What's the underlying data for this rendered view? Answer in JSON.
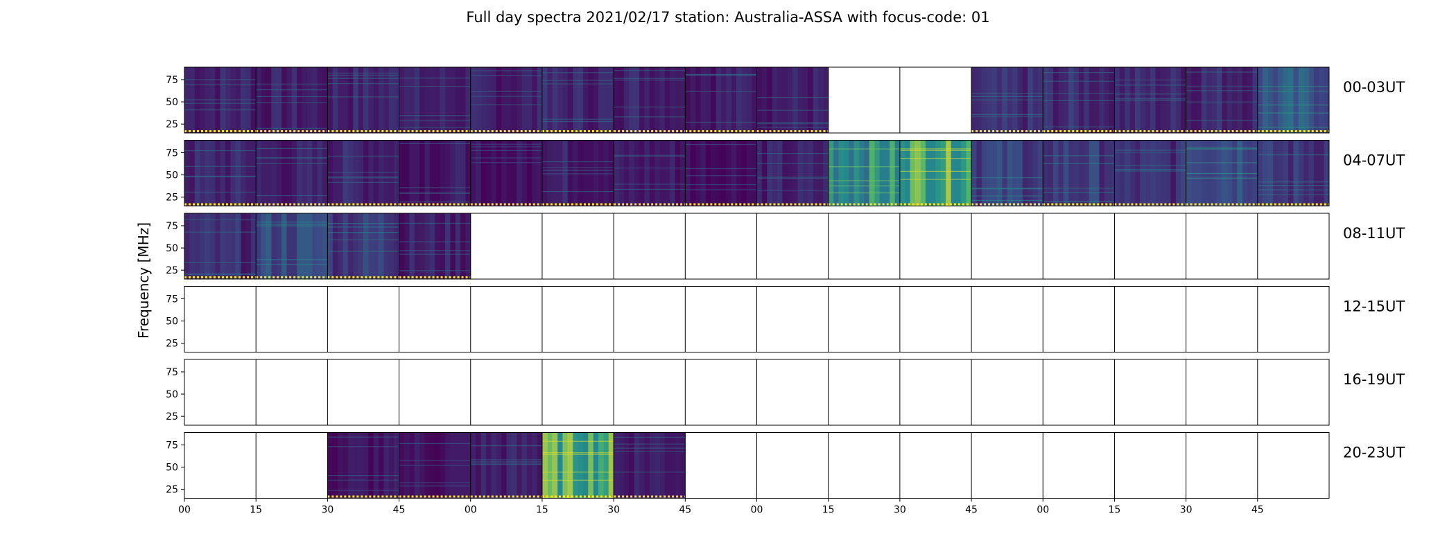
{
  "chart_data": {
    "type": "heatmap",
    "title": "Full day spectra 2021/02/17 station: Australia-ASSA with focus-code: 01",
    "ylabel": "Frequency [MHz]",
    "y_ticks": [
      "25",
      "50",
      "75"
    ],
    "y_tick_values": [
      25,
      50,
      75
    ],
    "ylim": [
      15,
      89
    ],
    "x_tick_labels": [
      "00",
      "15",
      "30",
      "45",
      "00",
      "15",
      "30",
      "45",
      "00",
      "15",
      "30",
      "45",
      "00",
      "15",
      "30",
      "45"
    ],
    "row_labels": [
      "00-03UT",
      "04-07UT",
      "08-11UT",
      "12-15UT",
      "16-19UT",
      "20-23UT"
    ],
    "colormap": [
      "#440154",
      "#3b528b",
      "#21918c",
      "#5ec962",
      "#fde725"
    ],
    "marker_color": "#fde725",
    "intensity_description": "Each row spans 4 hours split into 16 fifteen-minute panels; intensity values give relative spectral power (0 = dark purple, 1 = yellow). null means no data.",
    "rows": [
      {
        "label": "00-03UT",
        "intensity": [
          0.12,
          0.1,
          0.12,
          0.1,
          0.1,
          0.12,
          0.12,
          0.1,
          0.1,
          null,
          null,
          0.14,
          0.14,
          0.13,
          0.14,
          0.3
        ]
      },
      {
        "label": "04-07UT",
        "intensity": [
          0.12,
          0.1,
          0.12,
          0.08,
          0.05,
          0.1,
          0.08,
          0.05,
          0.1,
          0.55,
          0.7,
          0.22,
          0.2,
          0.15,
          0.3,
          0.18
        ]
      },
      {
        "label": "08-11UT",
        "intensity": [
          0.14,
          0.25,
          0.2,
          0.1,
          null,
          null,
          null,
          null,
          null,
          null,
          null,
          null,
          null,
          null,
          null,
          null
        ]
      },
      {
        "label": "12-15UT",
        "intensity": [
          null,
          null,
          null,
          null,
          null,
          null,
          null,
          null,
          null,
          null,
          null,
          null,
          null,
          null,
          null,
          null
        ]
      },
      {
        "label": "16-19UT",
        "intensity": [
          null,
          null,
          null,
          null,
          null,
          null,
          null,
          null,
          null,
          null,
          null,
          null,
          null,
          null,
          null,
          null
        ]
      },
      {
        "label": "20-23UT",
        "intensity": [
          null,
          null,
          0.06,
          0.06,
          0.1,
          0.7,
          0.1,
          null,
          null,
          null,
          null,
          null,
          null,
          null,
          null,
          null
        ]
      }
    ]
  }
}
